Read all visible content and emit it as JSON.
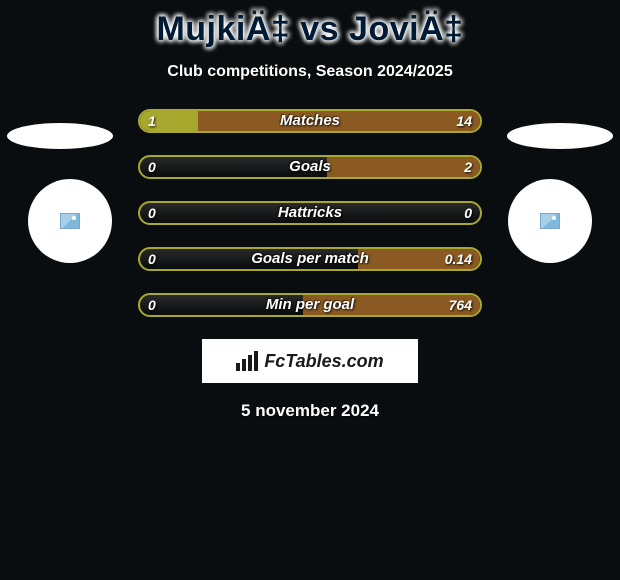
{
  "title": "MujkiÄ‡ vs JoviÄ‡",
  "subtitle": "Club competitions, Season 2024/2025",
  "date": "5 november 2024",
  "branding": "FcTables.com",
  "colors": {
    "left_accent": "#a8a82e",
    "right_accent": "#8a5a22",
    "track_border": "#a8a82e",
    "background": "#0a0d0f",
    "text": "#ffffff"
  },
  "stats": [
    {
      "label": "Matches",
      "left_val": "1",
      "right_val": "14",
      "left_pct": 17,
      "right_pct": 83
    },
    {
      "label": "Goals",
      "left_val": "0",
      "right_val": "2",
      "left_pct": 0,
      "right_pct": 45
    },
    {
      "label": "Hattricks",
      "left_val": "0",
      "right_val": "0",
      "left_pct": 0,
      "right_pct": 0
    },
    {
      "label": "Goals per match",
      "left_val": "0",
      "right_val": "0.14",
      "left_pct": 0,
      "right_pct": 36
    },
    {
      "label": "Min per goal",
      "left_val": "0",
      "right_val": "764",
      "left_pct": 0,
      "right_pct": 52
    }
  ]
}
